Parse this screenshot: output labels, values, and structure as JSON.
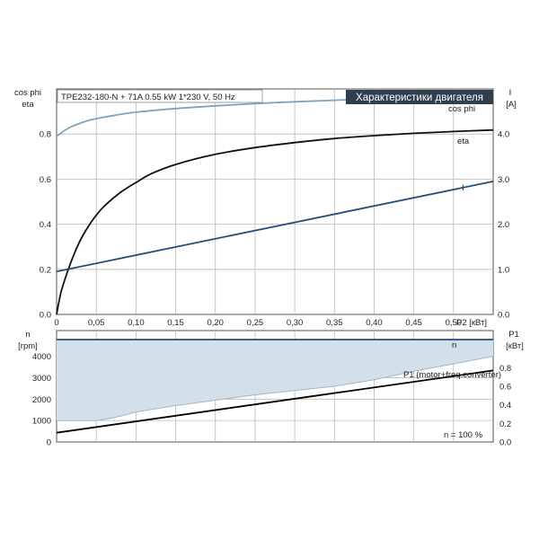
{
  "colors": {
    "cos_phi": "#7da3c0",
    "eta": "#111111",
    "current": "#1f4e79",
    "speed": "#1f4e79",
    "speed_fill": "#d3dfe9",
    "p1": "#000000",
    "title_bg": "#2f3f4f",
    "title_fg": "#ffffff",
    "grid": "#b9b9b9"
  },
  "chart_data": [
    {
      "type": "line",
      "panel": "top",
      "title": "Характеристики двигателя",
      "subtitle": "TPE232-180-N + 71A   0.55 kW   1*230 V, 50 Hz",
      "xlabel": "P2 [кВт]",
      "ylabel_left": [
        "cos phi",
        "eta"
      ],
      "ylabel_right": [
        "I",
        "[A]"
      ],
      "xlim": [
        0,
        0.55
      ],
      "ylim": [
        0,
        1.0
      ],
      "ylim_right": [
        0,
        5.0
      ],
      "x_ticks": [
        "0",
        "0,05",
        "0,10",
        "0,15",
        "0,20",
        "0,25",
        "0,30",
        "0,35",
        "0,40",
        "0,45",
        "0,50"
      ],
      "y_ticks": [
        "0.0",
        "0.2",
        "0.4",
        "0.6",
        "0.8"
      ],
      "y_ticks_right": [
        "0.0",
        "1.0",
        "2.0",
        "3.0",
        "4.0"
      ],
      "grid": true,
      "series": [
        {
          "name": "cos phi",
          "axis": "left",
          "x": [
            0,
            0.01,
            0.02,
            0.04,
            0.06,
            0.08,
            0.1,
            0.15,
            0.2,
            0.25,
            0.3,
            0.35,
            0.4,
            0.45,
            0.5,
            0.55
          ],
          "y": [
            0.79,
            0.815,
            0.835,
            0.86,
            0.875,
            0.887,
            0.897,
            0.913,
            0.925,
            0.935,
            0.943,
            0.95,
            0.955,
            0.96,
            0.963,
            0.965
          ]
        },
        {
          "name": "eta",
          "axis": "left",
          "x": [
            0,
            0.005,
            0.01,
            0.02,
            0.03,
            0.04,
            0.05,
            0.06,
            0.08,
            0.1,
            0.12,
            0.15,
            0.2,
            0.25,
            0.3,
            0.35,
            0.4,
            0.45,
            0.5,
            0.55
          ],
          "y": [
            0,
            0.09,
            0.15,
            0.25,
            0.33,
            0.39,
            0.44,
            0.48,
            0.54,
            0.585,
            0.625,
            0.665,
            0.71,
            0.74,
            0.762,
            0.78,
            0.793,
            0.803,
            0.811,
            0.818
          ]
        },
        {
          "name": "I",
          "axis": "right",
          "x": [
            0,
            0.55
          ],
          "y": [
            0.95,
            2.95
          ]
        }
      ]
    },
    {
      "type": "area",
      "panel": "bottom",
      "ylabel_left": [
        "n",
        "[rpm]"
      ],
      "ylabel_right": [
        "P1",
        "[кВт]"
      ],
      "xlim": [
        0,
        0.55
      ],
      "ylim": [
        0,
        5200
      ],
      "ylim_right": [
        0,
        1.2
      ],
      "y_ticks": [
        "0",
        "1000",
        "2000",
        "3000",
        "4000"
      ],
      "y_ticks_right": [
        "0.0",
        "0.2",
        "0.4",
        "0.6",
        "0.8"
      ],
      "grid": true,
      "annotation": "n = 100 %",
      "series": [
        {
          "name": "n",
          "axis": "left",
          "upper": {
            "x": [
              0,
              0.55
            ],
            "y": [
              4780,
              4780
            ]
          },
          "lower": {
            "x": [
              0,
              0.01,
              0.02,
              0.03,
              0.04,
              0.05,
              0.06,
              0.08,
              0.1,
              0.15,
              0.2,
              0.25,
              0.3,
              0.35,
              0.4,
              0.45,
              0.5,
              0.55
            ],
            "y": [
              1000,
              1000,
              1000,
              1000,
              1000,
              1000,
              1050,
              1200,
              1400,
              1700,
              1950,
              2200,
              2400,
              2600,
              2900,
              3300,
              3650,
              4000
            ]
          }
        },
        {
          "name": "P1 (motor+freq.converter)",
          "axis": "right",
          "x": [
            0,
            0.55
          ],
          "y": [
            0.1,
            0.77
          ]
        }
      ]
    }
  ]
}
